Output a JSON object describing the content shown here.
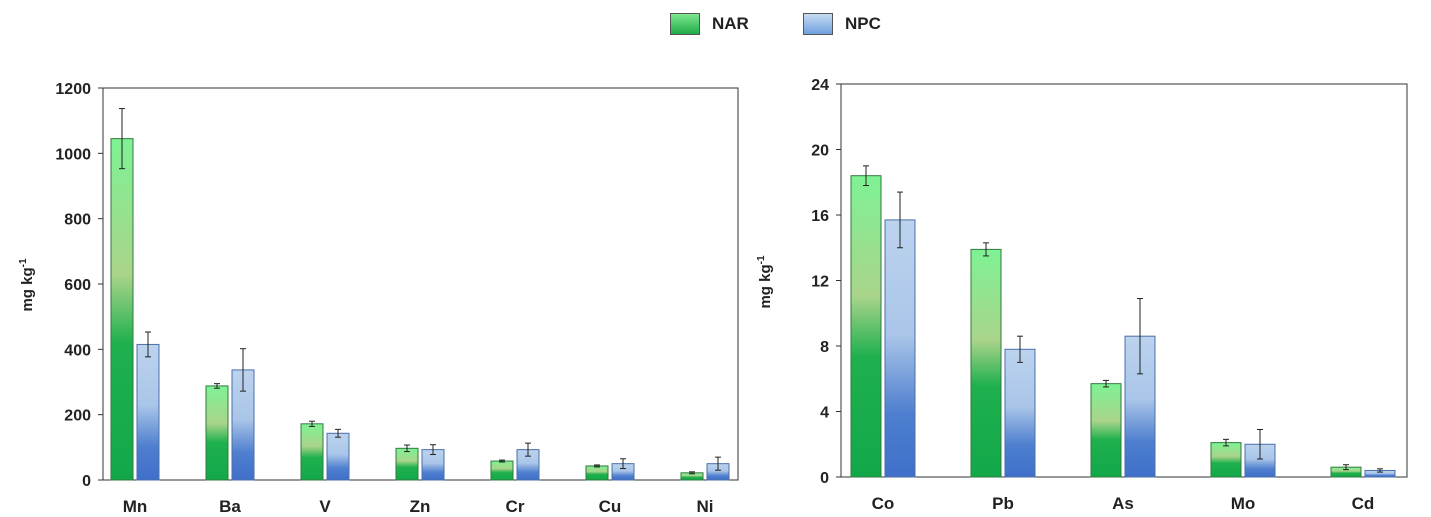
{
  "legend": [
    {
      "name": "NAR",
      "color": "#2bbf56"
    },
    {
      "name": "NPC",
      "color": "#6f9fdf"
    }
  ],
  "chart_data": [
    {
      "type": "bar",
      "ylabel": "mg kg",
      "ylabel_sup": "-1",
      "ylim": [
        0,
        1200
      ],
      "yticks": [
        0,
        200,
        400,
        600,
        800,
        1000,
        1200
      ],
      "categories": [
        "Mn",
        "Ba",
        "V",
        "Zn",
        "Cr",
        "Cu",
        "Ni"
      ],
      "series": [
        {
          "name": "NAR",
          "values": [
            1045,
            288,
            172,
            97,
            58,
            43,
            22
          ],
          "errors": [
            92,
            7,
            8,
            10,
            3,
            3,
            3
          ]
        },
        {
          "name": "NPC",
          "values": [
            415,
            337,
            143,
            93,
            93,
            50,
            50
          ],
          "errors": [
            38,
            65,
            12,
            15,
            20,
            15,
            20
          ]
        }
      ]
    },
    {
      "type": "bar",
      "ylabel": "mg kg",
      "ylabel_sup": "-1",
      "ylim": [
        0,
        24
      ],
      "yticks": [
        0,
        4,
        8,
        12,
        16,
        20,
        24
      ],
      "categories": [
        "Co",
        "Pb",
        "As",
        "Mo",
        "Cd"
      ],
      "series": [
        {
          "name": "NAR",
          "values": [
            18.4,
            13.9,
            5.7,
            2.1,
            0.6
          ],
          "errors": [
            0.6,
            0.4,
            0.2,
            0.2,
            0.15
          ]
        },
        {
          "name": "NPC",
          "values": [
            15.7,
            7.8,
            8.6,
            2.0,
            0.4
          ],
          "errors": [
            1.7,
            0.8,
            2.3,
            0.9,
            0.1
          ]
        }
      ]
    }
  ]
}
